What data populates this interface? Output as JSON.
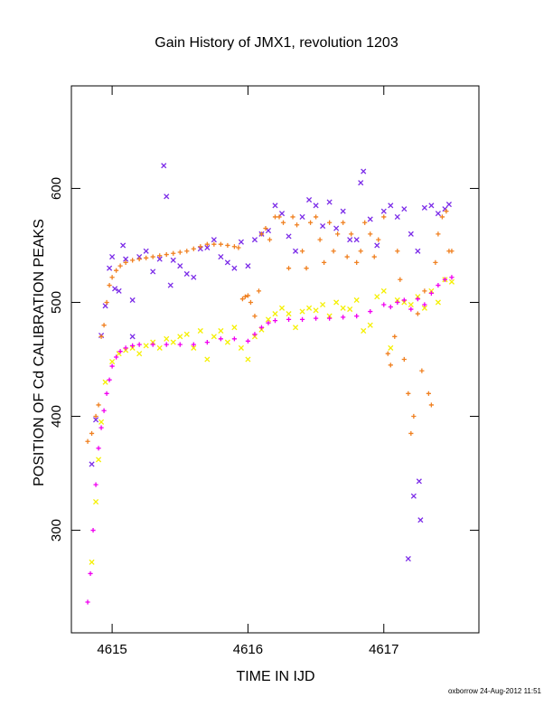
{
  "chart_data": {
    "type": "scatter",
    "title": "Gain History of JMX1, revolution 1203",
    "xlabel": "TIME IN IJD",
    "ylabel": "POSITION OF Cd CALIBRATION PEAKS",
    "xlim": [
      4614.7,
      4617.7
    ],
    "ylim": [
      210,
      690
    ],
    "xticks": [
      4615,
      4616,
      4617
    ],
    "xtick_labels": [
      "4615",
      "4616",
      "4617"
    ],
    "yticks": [
      300,
      400,
      500,
      600
    ],
    "ytick_labels": [
      "300",
      "400",
      "500",
      "600"
    ],
    "grid": false,
    "footer": "oxborrow 24-Aug-2012 11:51",
    "colors": {
      "purple": "#7b2be8",
      "orange": "#f08020",
      "yellow": "#f5f000",
      "magenta": "#f000f0",
      "axis": "#000000"
    },
    "series": [
      {
        "marker": "x",
        "color": "#7b2be8",
        "x": [
          4614.85,
          4614.88,
          4614.92,
          4614.95,
          4614.98,
          4615.0,
          4615.02,
          4615.05,
          4615.08,
          4615.1,
          4615.15,
          4615.2,
          4615.25,
          4615.3,
          4615.35,
          4615.4,
          4615.45,
          4615.5,
          4615.55,
          4615.6,
          4615.65,
          4615.7,
          4615.75,
          4615.8,
          4615.85,
          4615.9,
          4615.95,
          4616.0,
          4616.05,
          4616.1,
          4616.15,
          4616.2,
          4616.25,
          4616.3,
          4616.35,
          4616.4,
          4616.45,
          4616.5,
          4616.55,
          4616.6,
          4616.65,
          4616.7,
          4616.75,
          4616.8,
          4616.85,
          4616.9,
          4616.95,
          4617.0,
          4617.05,
          4617.1,
          4617.15,
          4617.2,
          4617.25,
          4617.3,
          4617.35,
          4617.4,
          4617.45,
          4617.48,
          4615.38,
          4615.43,
          4615.15,
          4616.83,
          4617.18,
          4617.22,
          4617.26,
          4617.27
        ],
        "y": [
          358,
          397,
          471,
          497,
          530,
          540,
          512,
          510,
          550,
          538,
          502,
          540,
          545,
          527,
          538,
          593,
          537,
          532,
          525,
          522,
          547,
          548,
          555,
          540,
          535,
          530,
          553,
          532,
          555,
          560,
          563,
          585,
          578,
          558,
          545,
          575,
          590,
          585,
          567,
          588,
          565,
          580,
          555,
          555,
          615,
          573,
          550,
          580,
          585,
          575,
          582,
          560,
          545,
          583,
          585,
          578,
          582,
          586,
          620,
          515,
          470,
          605,
          275,
          330,
          343,
          309
        ]
      },
      {
        "marker": "+",
        "color": "#f08020",
        "x": [
          4614.82,
          4614.85,
          4614.88,
          4614.9,
          4614.92,
          4614.94,
          4614.96,
          4614.98,
          4615.0,
          4615.03,
          4615.06,
          4615.1,
          4615.15,
          4615.2,
          4615.25,
          4615.3,
          4615.35,
          4615.4,
          4615.45,
          4615.5,
          4615.55,
          4615.6,
          4615.65,
          4615.7,
          4615.75,
          4615.8,
          4615.85,
          4615.9,
          4615.93,
          4615.96,
          4615.98,
          4616.0,
          4616.02,
          4616.05,
          4616.08,
          4616.1,
          4616.13,
          4616.16,
          4616.2,
          4616.23,
          4616.26,
          4616.3,
          4616.33,
          4616.36,
          4616.4,
          4616.43,
          4616.46,
          4616.5,
          4616.53,
          4616.56,
          4616.6,
          4616.63,
          4616.66,
          4616.7,
          4616.73,
          4616.76,
          4616.8,
          4616.83,
          4616.86,
          4616.9,
          4616.93,
          4616.96,
          4617.0,
          4617.03,
          4617.05,
          4617.08,
          4617.1,
          4617.12,
          4617.15,
          4617.18,
          4617.2,
          4617.22,
          4617.25,
          4617.28,
          4617.3,
          4617.33,
          4617.35,
          4617.38,
          4617.4,
          4617.43,
          4617.46,
          4617.48,
          4617.5
        ],
        "y": [
          378,
          385,
          400,
          410,
          470,
          480,
          500,
          515,
          522,
          528,
          532,
          535,
          537,
          538,
          539,
          540,
          541,
          542,
          543,
          544,
          545,
          547,
          549,
          551,
          551,
          551,
          550,
          549,
          548,
          503,
          505,
          506,
          500,
          488,
          510,
          560,
          565,
          555,
          575,
          575,
          570,
          530,
          575,
          568,
          545,
          530,
          570,
          575,
          555,
          535,
          570,
          545,
          560,
          570,
          540,
          560,
          535,
          545,
          570,
          560,
          540,
          555,
          575,
          455,
          445,
          470,
          545,
          520,
          450,
          420,
          385,
          400,
          490,
          440,
          510,
          420,
          410,
          535,
          560,
          575,
          580,
          545,
          545
        ]
      },
      {
        "marker": "x",
        "color": "#f5f000",
        "x": [
          4614.85,
          4614.88,
          4614.9,
          4614.92,
          4614.95,
          4615.0,
          4615.05,
          4615.1,
          4615.15,
          4615.2,
          4615.25,
          4615.3,
          4615.35,
          4615.4,
          4615.45,
          4615.5,
          4615.55,
          4615.6,
          4615.65,
          4615.7,
          4615.75,
          4615.8,
          4615.85,
          4615.9,
          4615.95,
          4616.0,
          4616.05,
          4616.1,
          4616.15,
          4616.2,
          4616.25,
          4616.3,
          4616.35,
          4616.4,
          4616.45,
          4616.5,
          4616.55,
          4616.6,
          4616.65,
          4616.7,
          4616.75,
          4616.8,
          4616.85,
          4616.9,
          4616.95,
          4617.0,
          4617.05,
          4617.1,
          4617.15,
          4617.2,
          4617.25,
          4617.3,
          4617.35,
          4617.4,
          4617.45,
          4617.5
        ],
        "y": [
          272,
          325,
          362,
          395,
          430,
          448,
          455,
          458,
          460,
          455,
          462,
          465,
          460,
          468,
          465,
          470,
          472,
          460,
          475,
          450,
          470,
          475,
          465,
          478,
          460,
          450,
          470,
          476,
          485,
          490,
          495,
          490,
          478,
          492,
          495,
          493,
          498,
          488,
          500,
          495,
          494,
          502,
          475,
          480,
          505,
          510,
          460,
          502,
          500,
          498,
          505,
          495,
          510,
          500,
          520,
          518
        ]
      },
      {
        "marker": "+",
        "color": "#f000f0",
        "x": [
          4614.82,
          4614.84,
          4614.86,
          4614.88,
          4614.9,
          4614.92,
          4614.94,
          4614.96,
          4614.98,
          4615.0,
          4615.03,
          4615.06,
          4615.1,
          4615.15,
          4615.2,
          4615.3,
          4615.4,
          4615.5,
          4615.6,
          4615.7,
          4615.8,
          4615.9,
          4616.0,
          4616.05,
          4616.1,
          4616.15,
          4616.2,
          4616.3,
          4616.4,
          4616.5,
          4616.6,
          4616.7,
          4616.8,
          4616.9,
          4617.0,
          4617.05,
          4617.1,
          4617.15,
          4617.2,
          4617.25,
          4617.3,
          4617.35,
          4617.4,
          4617.45,
          4617.5
        ],
        "y": [
          237,
          262,
          300,
          340,
          372,
          390,
          405,
          420,
          432,
          444,
          452,
          457,
          460,
          462,
          463,
          463,
          463,
          463,
          463,
          465,
          468,
          468,
          466,
          472,
          478,
          482,
          484,
          485,
          485,
          486,
          486,
          487,
          488,
          492,
          498,
          496,
          500,
          502,
          494,
          503,
          498,
          508,
          515,
          520,
          522
        ]
      }
    ]
  }
}
